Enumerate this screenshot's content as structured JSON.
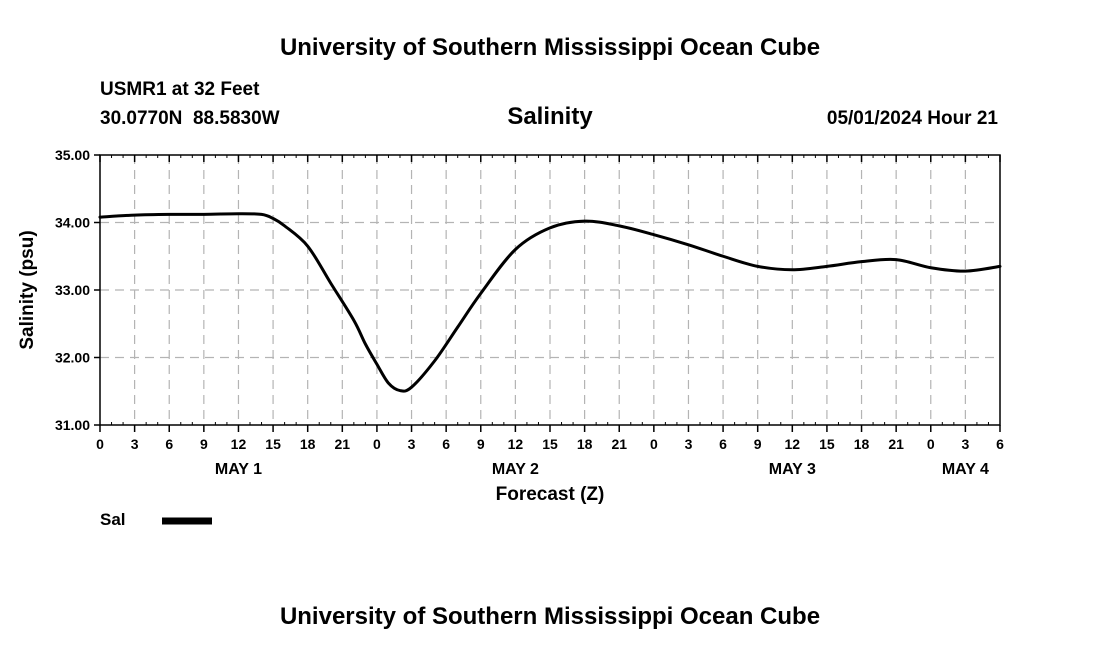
{
  "header": {
    "title": "University of Southern Mississippi Ocean Cube",
    "station": "USMR1 at 32 Feet",
    "location": "30.0770N  88.5830W",
    "timestamp": "05/01/2024 Hour 21"
  },
  "footer": {
    "title": "University of Southern Mississippi Ocean Cube"
  },
  "legend": {
    "label": "Sal",
    "line_color": "#000000"
  },
  "chart_data": {
    "type": "line",
    "title": "Salinity",
    "xlabel": "Forecast (Z)",
    "ylabel": "Salinity (psu)",
    "ylim": [
      31.0,
      35.0
    ],
    "xlim": [
      0,
      78
    ],
    "x_unit": "hours since MAY 1 00Z",
    "grid": true,
    "y_ticks": [
      {
        "value": 31.0,
        "label": "31.00"
      },
      {
        "value": 32.0,
        "label": "32.00"
      },
      {
        "value": 33.0,
        "label": "33.00"
      },
      {
        "value": 34.0,
        "label": "34.00"
      },
      {
        "value": 35.0,
        "label": "35.00"
      }
    ],
    "x_ticks": [
      {
        "value": 0,
        "label": "0"
      },
      {
        "value": 3,
        "label": "3"
      },
      {
        "value": 6,
        "label": "6"
      },
      {
        "value": 9,
        "label": "9"
      },
      {
        "value": 12,
        "label": "12"
      },
      {
        "value": 15,
        "label": "15"
      },
      {
        "value": 18,
        "label": "18"
      },
      {
        "value": 21,
        "label": "21"
      },
      {
        "value": 24,
        "label": "0"
      },
      {
        "value": 27,
        "label": "3"
      },
      {
        "value": 30,
        "label": "6"
      },
      {
        "value": 33,
        "label": "9"
      },
      {
        "value": 36,
        "label": "12"
      },
      {
        "value": 39,
        "label": "15"
      },
      {
        "value": 42,
        "label": "18"
      },
      {
        "value": 45,
        "label": "21"
      },
      {
        "value": 48,
        "label": "0"
      },
      {
        "value": 51,
        "label": "3"
      },
      {
        "value": 54,
        "label": "6"
      },
      {
        "value": 57,
        "label": "9"
      },
      {
        "value": 60,
        "label": "12"
      },
      {
        "value": 63,
        "label": "15"
      },
      {
        "value": 66,
        "label": "18"
      },
      {
        "value": 69,
        "label": "21"
      },
      {
        "value": 72,
        "label": "0"
      },
      {
        "value": 75,
        "label": "3"
      },
      {
        "value": 78,
        "label": "6"
      }
    ],
    "day_labels": [
      {
        "value": 12,
        "label": "MAY 1"
      },
      {
        "value": 36,
        "label": "MAY 2"
      },
      {
        "value": 60,
        "label": "MAY 3"
      },
      {
        "value": 75,
        "label": "MAY 4"
      }
    ],
    "series": [
      {
        "name": "Sal",
        "x": [
          0,
          3,
          6,
          9,
          12,
          14,
          15,
          16,
          18,
          20,
          22,
          23,
          24,
          25,
          26,
          27,
          29,
          31,
          33,
          36,
          39,
          42,
          45,
          48,
          51,
          54,
          57,
          60,
          63,
          66,
          69,
          72,
          75,
          78
        ],
        "values": [
          34.08,
          34.11,
          34.12,
          34.12,
          34.13,
          34.12,
          34.06,
          33.95,
          33.65,
          33.1,
          32.55,
          32.2,
          31.9,
          31.62,
          31.51,
          31.56,
          31.95,
          32.45,
          32.95,
          33.6,
          33.92,
          34.02,
          33.95,
          33.82,
          33.67,
          33.5,
          33.35,
          33.3,
          33.35,
          33.42,
          33.45,
          33.33,
          33.28,
          33.35
        ]
      }
    ]
  }
}
